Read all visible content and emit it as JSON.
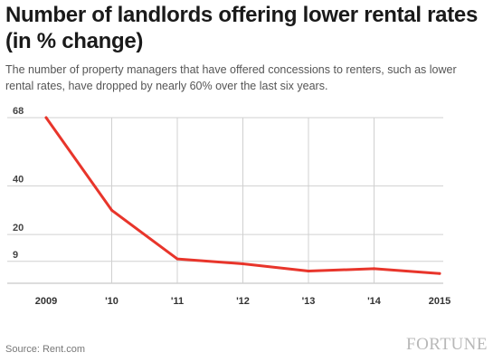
{
  "chart_data": {
    "type": "line",
    "title": "Number of landlords offering lower rental rates (in % change)",
    "subtitle": "The number of property managers that have offered concessions to renters, such as lower rental rates, have dropped by nearly 60% over the last six years.",
    "x": [
      "2009",
      "'10",
      "'11",
      "'12",
      "'13",
      "'14",
      "2015"
    ],
    "series": [
      {
        "values": [
          68,
          30,
          10,
          8,
          5,
          6,
          4
        ]
      }
    ],
    "yticks": [
      68,
      40,
      20,
      9
    ],
    "ylim": [
      0,
      68
    ],
    "grid": true,
    "line_color": "#e8352b",
    "source": "Source: Rent.com",
    "brand": "FORTUNE"
  }
}
